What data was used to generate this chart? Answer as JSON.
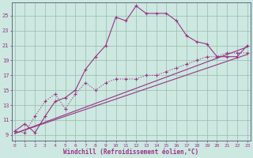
{
  "xlabel": "Windchill (Refroidissement éolien,°C)",
  "background_color": "#cce8e0",
  "grid_color": "#aaccbb",
  "line_color": "#993388",
  "x_ticks": [
    0,
    1,
    2,
    3,
    4,
    5,
    6,
    7,
    8,
    9,
    10,
    11,
    12,
    13,
    14,
    15,
    16,
    17,
    18,
    19,
    20,
    21,
    22,
    23
  ],
  "y_ticks": [
    9,
    11,
    13,
    15,
    17,
    19,
    21,
    23,
    25
  ],
  "xlim": [
    -0.3,
    23.3
  ],
  "ylim": [
    8.2,
    26.8
  ],
  "series1_x": [
    0,
    1,
    2,
    3,
    4,
    5,
    6,
    7,
    8,
    9,
    10,
    11,
    12,
    13,
    14,
    15,
    16,
    17,
    18,
    19,
    20,
    21,
    22,
    23
  ],
  "series1_y": [
    9.5,
    10.5,
    9.3,
    11.5,
    13.5,
    14.0,
    15.0,
    17.8,
    19.5,
    21.0,
    24.8,
    24.3,
    26.3,
    25.3,
    25.3,
    25.3,
    24.3,
    22.3,
    21.5,
    21.2,
    19.5,
    19.5,
    19.5,
    21.0
  ],
  "series2_x": [
    0,
    1,
    2,
    3,
    4,
    5,
    6,
    7,
    8,
    9,
    10,
    11,
    12,
    13,
    14,
    15,
    16,
    17,
    18,
    19,
    20,
    21,
    22,
    23
  ],
  "series2_y": [
    9.5,
    9.3,
    11.5,
    13.5,
    14.5,
    12.5,
    14.5,
    16.0,
    15.0,
    16.0,
    16.5,
    16.5,
    16.5,
    17.0,
    17.0,
    17.5,
    18.0,
    18.5,
    19.0,
    19.5,
    19.5,
    20.0,
    20.0,
    20.0
  ],
  "series3_x": [
    0,
    23
  ],
  "series3_y": [
    9.2,
    20.8
  ],
  "series4_x": [
    0,
    23
  ],
  "series4_y": [
    9.2,
    19.8
  ]
}
